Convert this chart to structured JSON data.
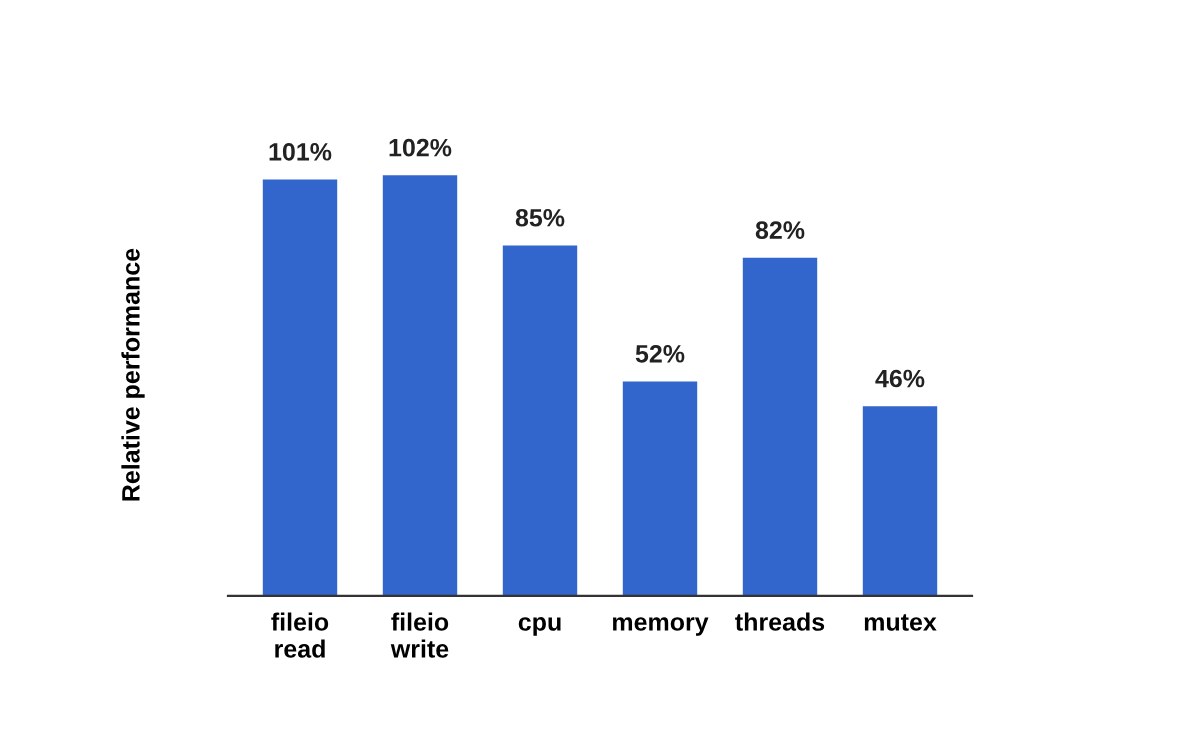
{
  "chart_data": {
    "type": "bar",
    "ylabel": "Relative performance",
    "categories": [
      "fileio\nread",
      "fileio\nwrite",
      "cpu",
      "memory",
      "threads",
      "mutex"
    ],
    "values": [
      101,
      102,
      85,
      52,
      82,
      46
    ],
    "value_labels": [
      "101%",
      "102%",
      "85%",
      "52%",
      "82%",
      "46%"
    ],
    "color": "#3366cc",
    "tick_labels": "x",
    "grid": false,
    "legend": false
  }
}
